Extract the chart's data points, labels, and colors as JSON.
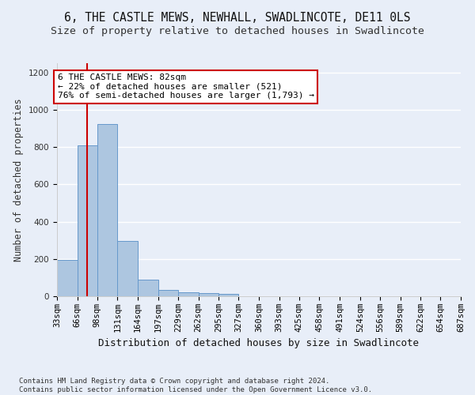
{
  "title_line1": "6, THE CASTLE MEWS, NEWHALL, SWADLINCOTE, DE11 0LS",
  "title_line2": "Size of property relative to detached houses in Swadlincote",
  "xlabel": "Distribution of detached houses by size in Swadlincote",
  "ylabel": "Number of detached properties",
  "footnote": "Contains HM Land Registry data © Crown copyright and database right 2024.\nContains public sector information licensed under the Open Government Licence v3.0.",
  "bin_edges": [
    33,
    66,
    98,
    131,
    164,
    197,
    229,
    262,
    295,
    327,
    360,
    393,
    425,
    458,
    491,
    524,
    556,
    589,
    622,
    654,
    687
  ],
  "bar_heights": [
    195,
    810,
    925,
    295,
    88,
    35,
    20,
    18,
    12,
    0,
    0,
    0,
    0,
    0,
    0,
    0,
    0,
    0,
    0,
    0
  ],
  "bar_color": "#adc6e0",
  "bar_edge_color": "#6699cc",
  "property_size": 82,
  "vline_color": "#cc0000",
  "annotation_text": "6 THE CASTLE MEWS: 82sqm\n← 22% of detached houses are smaller (521)\n76% of semi-detached houses are larger (1,793) →",
  "annotation_box_color": "#ffffff",
  "annotation_box_edge_color": "#cc0000",
  "ylim": [
    0,
    1250
  ],
  "yticks": [
    0,
    200,
    400,
    600,
    800,
    1000,
    1200
  ],
  "background_color": "#e8eef8",
  "grid_color": "#ffffff",
  "title_fontsize": 10.5,
  "subtitle_fontsize": 9.5,
  "axis_label_fontsize": 8.5,
  "tick_label_fontsize": 7.5,
  "annotation_fontsize": 8,
  "footnote_fontsize": 6.5
}
